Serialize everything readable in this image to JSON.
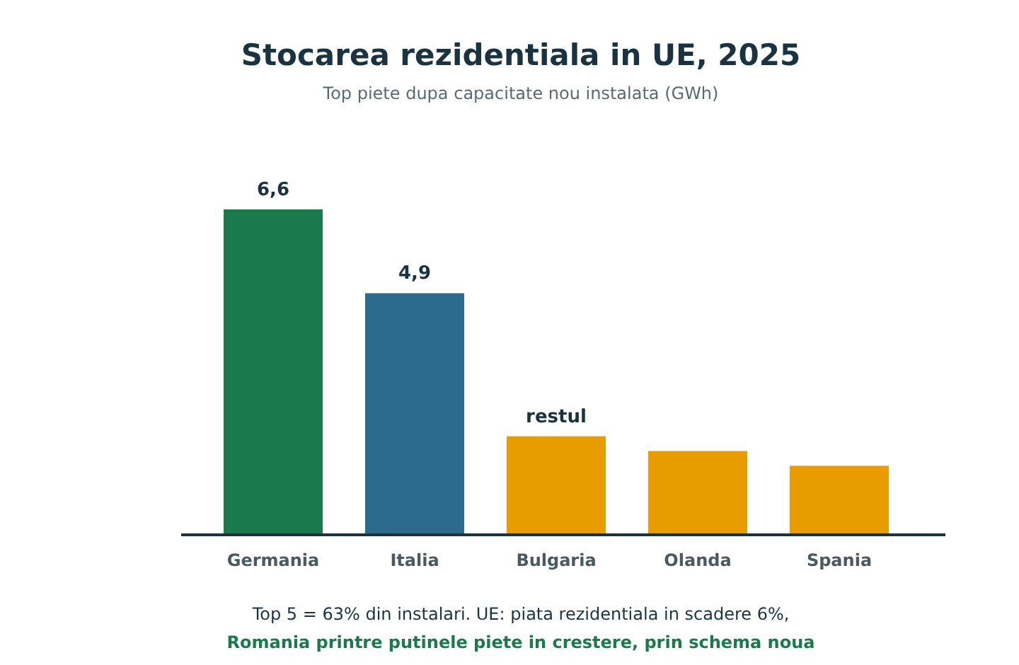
{
  "chart_data": {
    "type": "bar",
    "title": "Stocarea rezidentiala in UE, 2025",
    "subtitle": "Top piete dupa capacitate nou instalata (GWh)",
    "categories": [
      "Germania",
      "Italia",
      "Bulgaria",
      "Olanda",
      "Spania"
    ],
    "values": [
      6.6,
      4.9,
      2.0,
      1.7,
      1.4
    ],
    "colors": [
      "#1a7a4c",
      "#2c6b8c",
      "#e89c00",
      "#e89c00",
      "#e89c00"
    ],
    "value_labels": [
      "6,6",
      "4,9",
      "restul",
      null,
      null
    ],
    "annotations": [
      "Top 5 = 63% din instalari. UE: piata rezidentiala in scadere 6%,",
      "Romania printre putinele piete in crestere, prin schema noua"
    ]
  }
}
